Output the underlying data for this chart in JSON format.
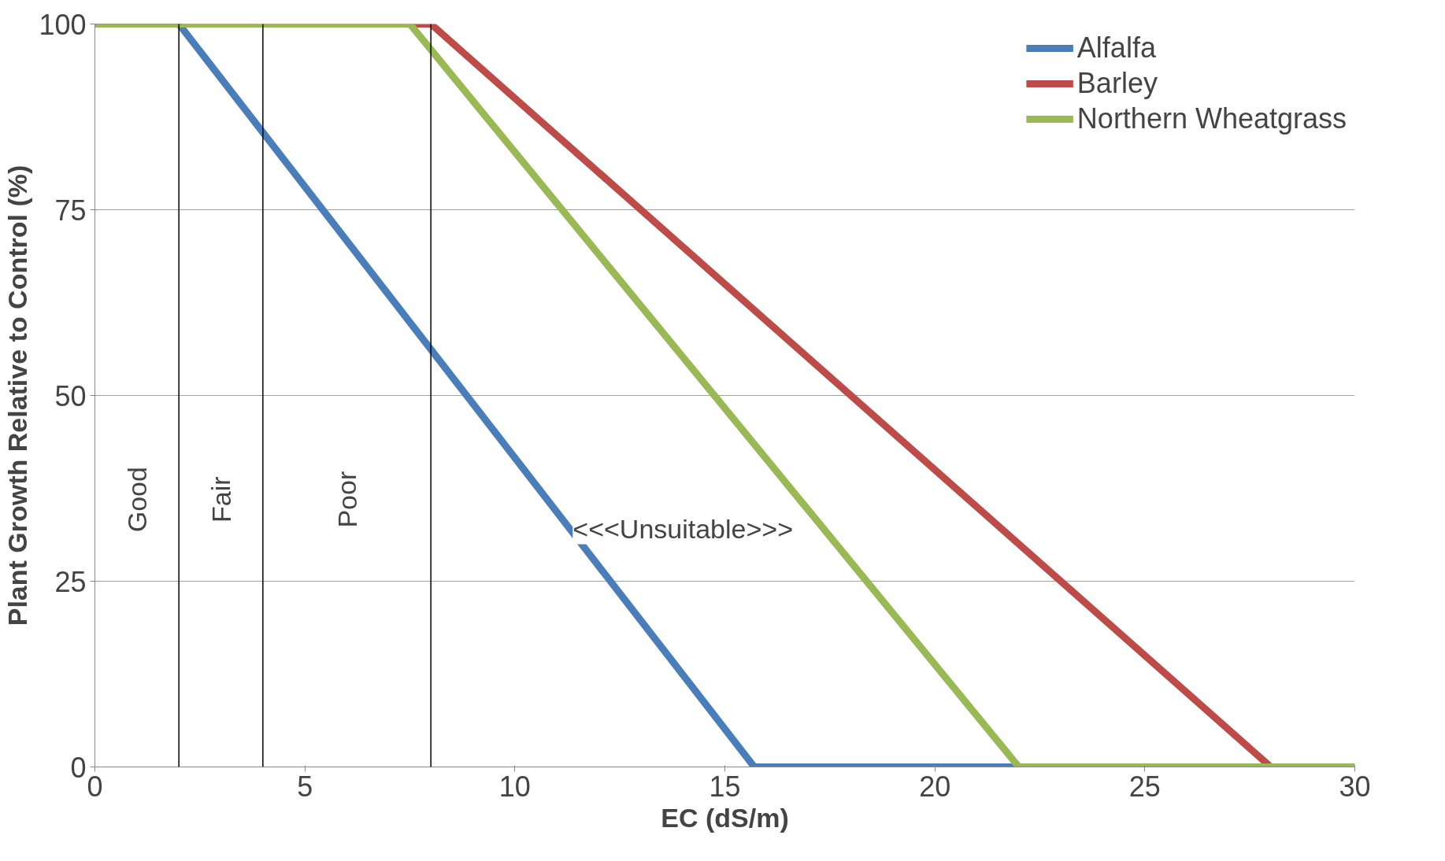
{
  "chart_data": {
    "type": "line",
    "xlabel": "EC (dS/m)",
    "ylabel": "Plant Growth Relative to Control (%)",
    "series": [
      {
        "name": "Alfalfa",
        "color": "#4a7ebb",
        "x": [
          0,
          2,
          15.7,
          30
        ],
        "values": [
          100,
          100,
          0,
          0
        ]
      },
      {
        "name": "Barley",
        "color": "#be4b48",
        "x": [
          0,
          8,
          28
        ],
        "values": [
          100,
          100,
          0
        ]
      },
      {
        "name": "Northern Wheatgrass",
        "color": "#98b954",
        "x": [
          0,
          7.5,
          22,
          30
        ],
        "values": [
          100,
          100,
          0,
          0
        ]
      }
    ],
    "xlim": [
      0,
      30
    ],
    "xticks": [
      0,
      5,
      10,
      15,
      20,
      25,
      30
    ],
    "ylim": [
      0,
      100
    ],
    "yticks": [
      0,
      25,
      50,
      75,
      100
    ],
    "grid": "y",
    "legend": "top right",
    "marker": "none",
    "line_style": "solid",
    "ref_lines": [
      {
        "axis": "x",
        "value": 2,
        "color": "#000000"
      },
      {
        "axis": "x",
        "value": 4,
        "color": "#000000"
      },
      {
        "axis": "x",
        "value": 8,
        "color": "#000000"
      }
    ],
    "annotations": [
      "Good",
      "Fair",
      "Poor",
      "<<<Unsuitable>>>"
    ]
  }
}
